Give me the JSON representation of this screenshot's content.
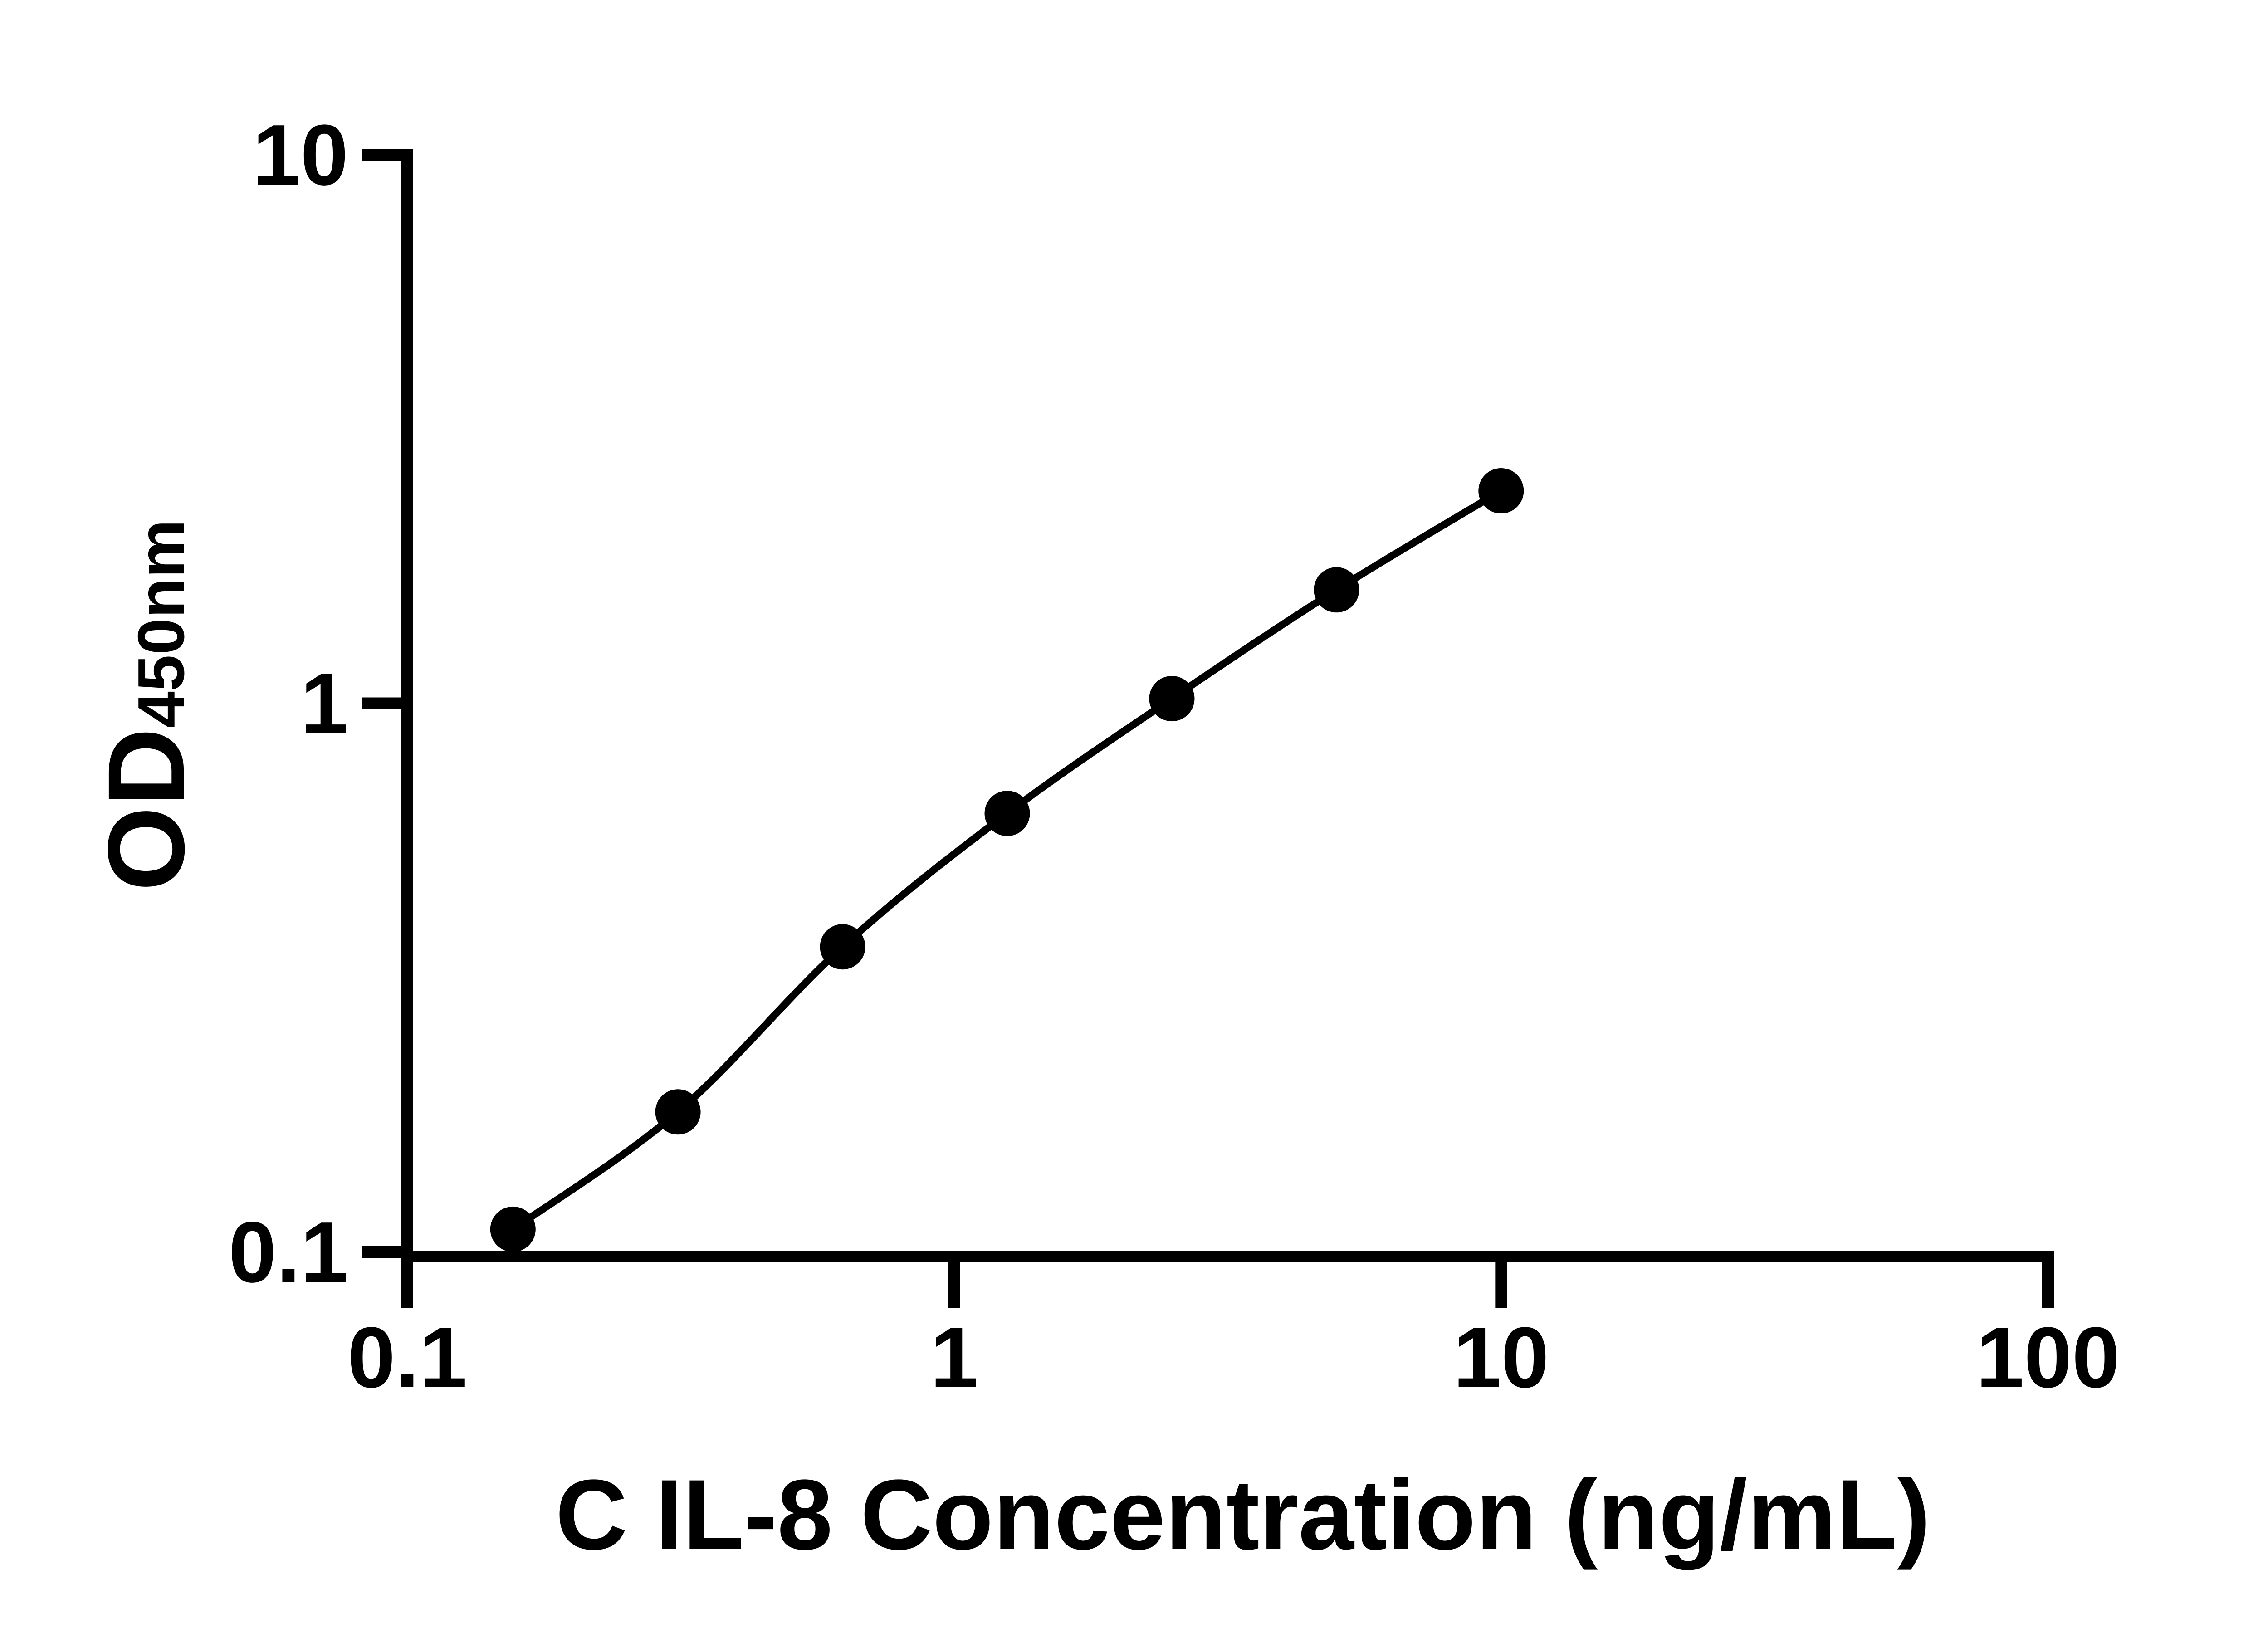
{
  "figure": {
    "background_color": "#ffffff",
    "foreground_color": "#000000"
  },
  "chart_data": {
    "type": "scatter",
    "title": "",
    "xlabel": "C IL-8 Concentration (ng/mL)",
    "ylabel": "OD450nm",
    "ylabel_main": "OD",
    "ylabel_sub": "450nm",
    "x_scale": "log10",
    "y_scale": "log10",
    "xlim": [
      0.1,
      100
    ],
    "ylim": [
      0.1,
      10
    ],
    "x_tick_values": [
      0.1,
      1,
      10,
      100
    ],
    "x_tick_labels": [
      "0.1",
      "1",
      "10",
      "100"
    ],
    "y_tick_values": [
      0.1,
      1,
      10
    ],
    "y_tick_labels": [
      "0.1",
      "1",
      "10"
    ],
    "grid": false,
    "legend_position": "none",
    "series": [
      {
        "marker": "filled-circle",
        "marker_color": "#000000",
        "line_color": "#000000",
        "line_style": "smooth-fit-curve",
        "x": [
          0.156,
          0.3125,
          0.625,
          1.25,
          2.5,
          5,
          10
        ],
        "y": [
          0.11,
          0.18,
          0.36,
          0.63,
          1.02,
          1.61,
          2.44
        ]
      }
    ]
  }
}
